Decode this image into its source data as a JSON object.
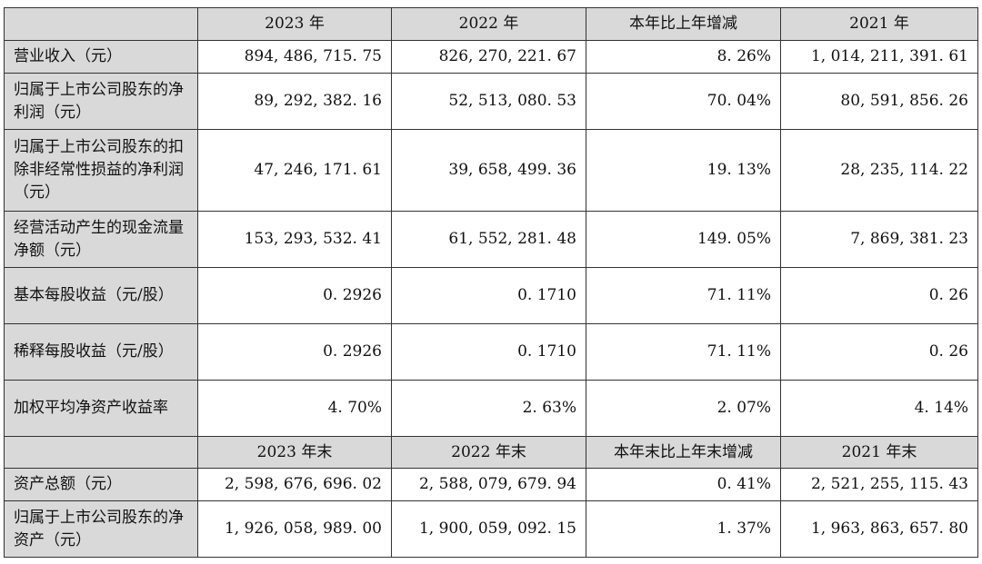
{
  "header_year": {
    "label": "",
    "cols": [
      "2023 年",
      "2022 年",
      "本年比上年增减",
      "2021 年"
    ]
  },
  "rows_year": [
    {
      "label": "营业收入（元）",
      "values": [
        "894, 486, 715. 75",
        "826, 270, 221. 67",
        "8. 26%",
        "1, 014, 211, 391. 61"
      ]
    },
    {
      "label": "归属于上市公司股东的净利润（元）",
      "values": [
        "89, 292, 382. 16",
        "52, 513, 080. 53",
        "70. 04%",
        "80, 591, 856. 26"
      ]
    },
    {
      "label": "归属于上市公司股东的扣除非经常性损益的净利润（元）",
      "values": [
        "47, 246, 171. 61",
        "39, 658, 499. 36",
        "19. 13%",
        "28, 235, 114. 22"
      ]
    },
    {
      "label": "经营活动产生的现金流量净额（元）",
      "values": [
        "153, 293, 532. 41",
        "61, 552, 281. 48",
        "149. 05%",
        "7, 869, 381. 23"
      ]
    },
    {
      "label": "基本每股收益（元/股）",
      "values": [
        "0. 2926",
        "0. 1710",
        "71. 11%",
        "0. 26"
      ]
    },
    {
      "label": "稀释每股收益（元/股）",
      "values": [
        "0. 2926",
        "0. 1710",
        "71. 11%",
        "0. 26"
      ]
    },
    {
      "label": "加权平均净资产收益率",
      "values": [
        "4. 70%",
        "2. 63%",
        "2. 07%",
        "4. 14%"
      ]
    }
  ],
  "header_yearend": {
    "label": "",
    "cols": [
      "2023 年末",
      "2022 年末",
      "本年末比上年末增减",
      "2021 年末"
    ]
  },
  "rows_yearend": [
    {
      "label": "资产总额（元）",
      "values": [
        "2, 598, 676, 696. 02",
        "2, 588, 079, 679. 94",
        "0. 41%",
        "2, 521, 255, 115. 43"
      ]
    },
    {
      "label": "归属于上市公司股东的净资产（元）",
      "values": [
        "1, 926, 058, 989. 00",
        "1, 900, 059, 092. 15",
        "1. 37%",
        "1, 963, 863, 657. 80"
      ]
    }
  ]
}
